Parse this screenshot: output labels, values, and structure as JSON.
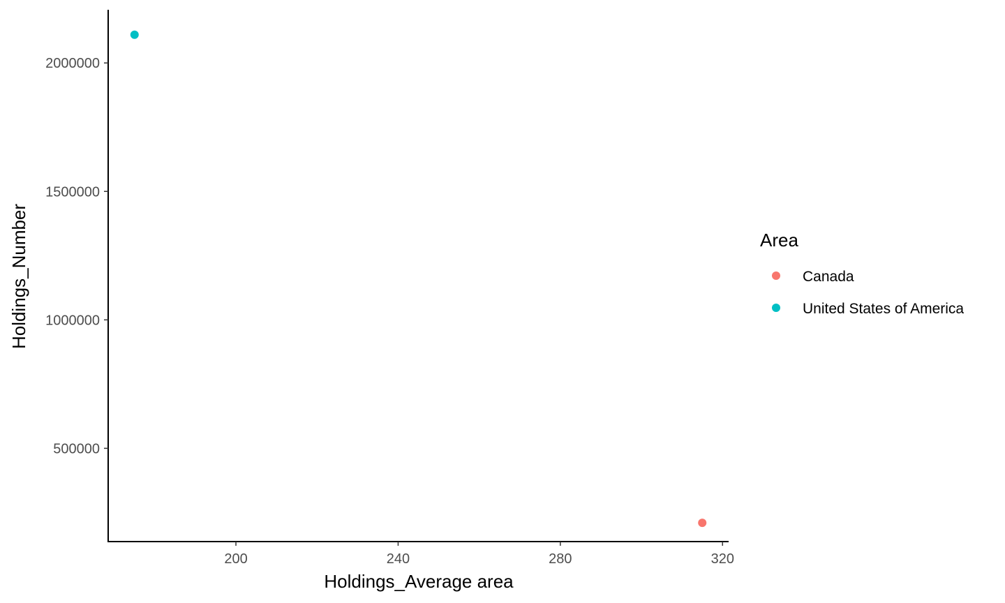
{
  "chart_data": {
    "type": "scatter",
    "title": "",
    "xlabel": "Holdings_Average area",
    "ylabel": "Holdings_Number",
    "xlim": [
      168.5,
      321.5
    ],
    "ylim": [
      137000,
      2207000
    ],
    "xticks": [
      200,
      240,
      280,
      320
    ],
    "yticks": [
      500000,
      1000000,
      1500000,
      2000000
    ],
    "grid": false,
    "legend": {
      "title": "Area",
      "position": "right"
    },
    "series": [
      {
        "name": "Canada",
        "color": "#F8766D",
        "points": [
          {
            "x": 315,
            "y": 210000
          }
        ]
      },
      {
        "name": "United States of America",
        "color": "#00BFC4",
        "points": [
          {
            "x": 175,
            "y": 2110000
          }
        ]
      }
    ]
  }
}
